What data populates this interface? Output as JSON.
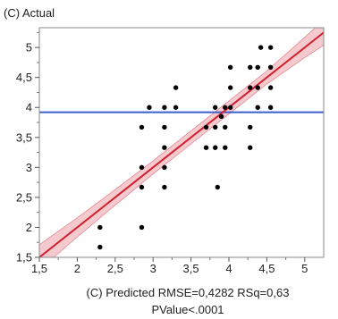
{
  "chart_data": {
    "type": "scatter",
    "ylabel": "(C) Actual",
    "xlabel_lines": [
      "(C) Predicted RMSE=0,4282 RSq=0,63",
      "PValue<.0001"
    ],
    "xlim": [
      1.5,
      5.25
    ],
    "ylim": [
      1.5,
      5.33
    ],
    "x_ticks": [
      1.5,
      2,
      2.5,
      3,
      3.5,
      4,
      4.5,
      5
    ],
    "x_tick_labels": [
      "1,5",
      "2",
      "2,5",
      "3",
      "3,5",
      "4",
      "4,5",
      "5"
    ],
    "y_ticks": [
      1.5,
      2,
      2.5,
      3,
      3.5,
      4,
      4.5,
      5
    ],
    "y_tick_labels": [
      "1,5",
      "2",
      "2,5",
      "3",
      "3,5",
      "4",
      "4,5",
      "5"
    ],
    "grid": false,
    "legend": "none",
    "mean_line_y": 3.92,
    "fit_line": {
      "x": [
        1.5,
        5.25
      ],
      "y": [
        1.5,
        5.25
      ]
    },
    "confidence_band": {
      "x": [
        1.5,
        2.0,
        2.5,
        3.0,
        3.5,
        3.92,
        4.5,
        5.0,
        5.25
      ],
      "lower": [
        1.29,
        1.84,
        2.37,
        2.89,
        3.39,
        3.81,
        4.39,
        4.83,
        5.04
      ],
      "upper": [
        1.71,
        2.16,
        2.63,
        3.11,
        3.61,
        4.03,
        4.61,
        5.17,
        5.46
      ]
    },
    "points": [
      {
        "x": 2.3,
        "y": 2.0
      },
      {
        "x": 2.3,
        "y": 1.67
      },
      {
        "x": 2.85,
        "y": 2.0
      },
      {
        "x": 2.85,
        "y": 2.67
      },
      {
        "x": 2.85,
        "y": 3.0
      },
      {
        "x": 2.85,
        "y": 3.67
      },
      {
        "x": 2.95,
        "y": 4.0
      },
      {
        "x": 3.15,
        "y": 2.67
      },
      {
        "x": 3.15,
        "y": 3.0
      },
      {
        "x": 3.15,
        "y": 3.33
      },
      {
        "x": 3.15,
        "y": 3.67
      },
      {
        "x": 3.15,
        "y": 4.0
      },
      {
        "x": 3.3,
        "y": 4.0
      },
      {
        "x": 3.3,
        "y": 4.33
      },
      {
        "x": 3.7,
        "y": 3.33
      },
      {
        "x": 3.7,
        "y": 3.67
      },
      {
        "x": 3.82,
        "y": 3.33
      },
      {
        "x": 3.82,
        "y": 3.67
      },
      {
        "x": 3.82,
        "y": 4.0
      },
      {
        "x": 3.85,
        "y": 2.67
      },
      {
        "x": 3.9,
        "y": 3.85
      },
      {
        "x": 3.95,
        "y": 3.33
      },
      {
        "x": 3.95,
        "y": 3.67
      },
      {
        "x": 3.95,
        "y": 4.0
      },
      {
        "x": 4.02,
        "y": 4.0
      },
      {
        "x": 4.02,
        "y": 4.33
      },
      {
        "x": 4.02,
        "y": 4.67
      },
      {
        "x": 4.28,
        "y": 3.33
      },
      {
        "x": 4.28,
        "y": 3.67
      },
      {
        "x": 4.28,
        "y": 4.33
      },
      {
        "x": 4.28,
        "y": 4.67
      },
      {
        "x": 4.38,
        "y": 4.0
      },
      {
        "x": 4.38,
        "y": 4.33
      },
      {
        "x": 4.38,
        "y": 4.67
      },
      {
        "x": 4.42,
        "y": 5.0
      },
      {
        "x": 4.55,
        "y": 4.0
      },
      {
        "x": 4.55,
        "y": 4.33
      },
      {
        "x": 4.55,
        "y": 4.67
      },
      {
        "x": 4.55,
        "y": 5.0
      }
    ],
    "colors": {
      "fit": "#d0202e",
      "band": "#f2b8bf",
      "mean": "#3b5fc9",
      "points": "#000000",
      "frame": "#888888"
    }
  }
}
